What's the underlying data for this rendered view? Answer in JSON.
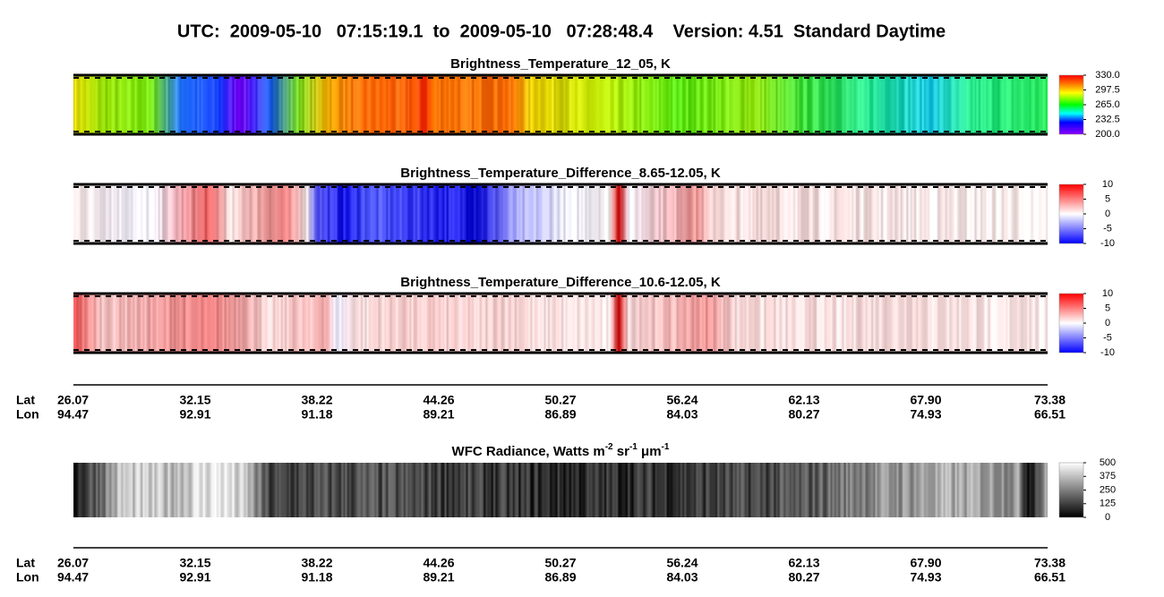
{
  "header": {
    "title": "UTC:  2009-05-10   07:15:19.1  to  2009-05-10   07:28:48.4    Version: 4.51  Standard Daytime"
  },
  "panels": [
    {
      "title": "Brightness_Temperature_12_05, K",
      "clim": [
        200,
        330
      ],
      "ticks": [
        {
          "value": 330,
          "label": "330.0"
        },
        {
          "value": 297.5,
          "label": "297.5"
        },
        {
          "value": 265,
          "label": "265.0"
        },
        {
          "value": 232.5,
          "label": "232.5"
        },
        {
          "value": 200,
          "label": "200.0"
        }
      ]
    },
    {
      "title": "Brightness_Temperature_Difference_8.65-12.05, K",
      "clim": [
        -10,
        10
      ],
      "ticks": [
        10,
        5,
        0,
        -5,
        -10
      ]
    },
    {
      "title": "Brightness_Temperature_Difference_10.6-12.05, K",
      "clim": [
        -10,
        10
      ],
      "ticks": [
        10,
        5,
        0,
        -5,
        -10
      ]
    },
    {
      "title_parts": [
        {
          "text": "WFC Radiance, Watts m"
        },
        {
          "sup": "-2"
        },
        {
          "text": " sr"
        },
        {
          "sup": "-1"
        },
        {
          "text": " μm"
        },
        {
          "sup": "-1"
        }
      ],
      "clim": [
        0,
        500
      ],
      "ticks": [
        500,
        375,
        250,
        125,
        0
      ]
    }
  ],
  "axis": {
    "lat_label": "Lat",
    "lon_label": "Lon",
    "lat": [
      "26.07",
      "32.15",
      "38.22",
      "44.26",
      "50.27",
      "56.24",
      "62.13",
      "67.90",
      "73.38"
    ],
    "lon": [
      "94.47",
      "92.91",
      "91.18",
      "89.21",
      "86.89",
      "84.03",
      "80.27",
      "74.93",
      "66.51"
    ]
  }
}
